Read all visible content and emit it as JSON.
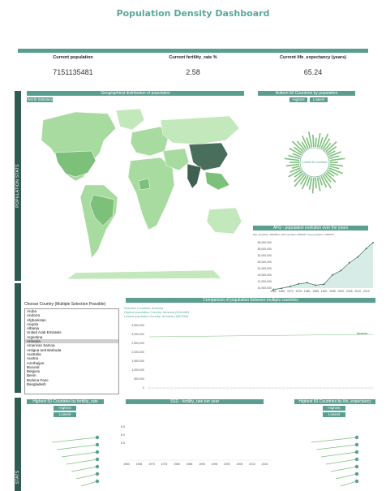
{
  "header": {
    "title": "Population Density Dashboard"
  },
  "kpis": [
    {
      "label": "Current population",
      "value": "7151135481"
    },
    {
      "label": "Current fertility_rate %",
      "value": "2.58"
    },
    {
      "label": "Current life_expectancy (years)",
      "value": "65.24"
    }
  ],
  "sidebar": {
    "section1": "POPULATION STATS",
    "section2": "STATS"
  },
  "map_panel": {
    "title": "Geographical distribution of population",
    "tab": "World Statistics"
  },
  "bottom50": {
    "title": "Bottom 50 Countries by population",
    "btn_high": "Highest",
    "btn_low": "Lowest",
    "center_label": "Lowest 50 countries"
  },
  "afg": {
    "title": "AFG - population evolution over the years",
    "subtitle": "Max population: 38928341 | Min population: 8996967 | Avg population: 19506671",
    "y_ticks": [
      "38,000,000",
      "35,000,000",
      "30,000,000",
      "25,000,000",
      "20,000,000",
      "15,000,000",
      "12,000,000",
      "10,000,000"
    ],
    "x_ticks": [
      "1960",
      "1965",
      "1970",
      "1975",
      "1980",
      "1985",
      "1990",
      "1995",
      "2000",
      "2005",
      "2010",
      "2015"
    ]
  },
  "country_select": {
    "label": "Choose Country (Multiple Selection Possible)",
    "options": [
      "Aruba",
      "Andorra",
      "Afghanistan",
      "Angola",
      "Albania",
      "United Arab Emirates",
      "Argentina",
      "Armenia",
      "American Samoa",
      "Antigua and Barbuda",
      "Australia",
      "Austria",
      "Azerbaijan",
      "Burundi",
      "Belgium",
      "Benin",
      "Burkina Faso",
      "Bangladesh"
    ],
    "selected": "Armenia"
  },
  "comparison": {
    "title": "Comparison of population between multiple countries",
    "info_selected": "Selected Countries: Armenia",
    "info_highest": "Highest population Country: Armenia (3044480)",
    "info_lowest": "Lowest population Country: Armenia (1867594)",
    "series_label": "Armenia",
    "y_ticks": [
      "3,500,000",
      "3,000,000",
      "2,500,000",
      "2,000,000",
      "1,500,000",
      "1,000,000",
      "500,000",
      "0"
    ]
  },
  "fertility_panel": {
    "title": "Highest 50 Countries by fertility_rate",
    "btn_high": "Highest",
    "btn_low": "Lowest"
  },
  "fertility_year": {
    "title": "SSD - fertility_rate per year",
    "y_ticks": [
      "6.5",
      "6.0",
      "5.5"
    ],
    "x_ticks": [
      "1960",
      "1965",
      "1970",
      "1975",
      "1980",
      "1985",
      "1990",
      "1995",
      "2000",
      "2005",
      "2010",
      "2015"
    ]
  },
  "life_panel": {
    "title": "Highest 50 Countries by life_expectancy",
    "btn_high": "Highest",
    "btn_low": "Lowest"
  },
  "chart_data": {
    "type": "line",
    "title": "AFG - population evolution over the years",
    "x": [
      1960,
      1965,
      1970,
      1975,
      1980,
      1985,
      1990,
      1995,
      2000,
      2005,
      2010,
      2015,
      2019
    ],
    "series": [
      {
        "values": [
          9000000,
          9900000,
          11100000,
          12600000,
          13300000,
          11800000,
          12400000,
          18100000,
          20800000,
          25600000,
          29200000,
          34400000,
          38000000
        ]
      }
    ],
    "ylim": [
      10000000,
      38000000
    ]
  },
  "colors": {
    "accent": "#5a9e8f",
    "dark": "#2f5b50",
    "map_light": "#a8dba0",
    "map_dark": "#4a6e5c"
  }
}
